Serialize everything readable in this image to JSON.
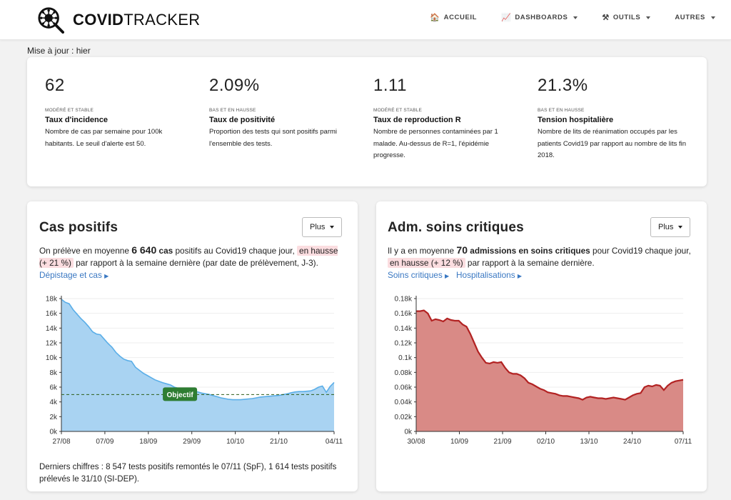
{
  "nav": {
    "brand_bold": "COVID",
    "brand_light": "TRACKER",
    "items": [
      {
        "icon": "🏠",
        "label": "ACCUEIL",
        "dropdown": false
      },
      {
        "icon": "📈",
        "label": "DASHBOARDS",
        "dropdown": true
      },
      {
        "icon": "⚒",
        "label": "OUTILS",
        "dropdown": true
      },
      {
        "icon": "",
        "label": "AUTRES",
        "dropdown": true
      }
    ]
  },
  "updated": "Mise à jour : hier",
  "kpis": [
    {
      "value": "62",
      "tag": "MODÉRÉ ET STABLE",
      "title": "Taux d'incidence",
      "desc": "Nombre de cas par semaine pour 100k habitants. Le seuil d'alerte est 50."
    },
    {
      "value": "2.09%",
      "tag": "BAS ET EN HAUSSE",
      "title": "Taux de positivité",
      "desc": "Proportion des tests qui sont positifs parmi l'ensemble des tests."
    },
    {
      "value": "1.11",
      "tag": "MODÉRÉ ET STABLE",
      "title": "Taux de reproduction R",
      "desc": "Nombre de personnes contaminées par 1 malade. Au-dessus de R=1, l'épidémie progresse."
    },
    {
      "value": "21.3%",
      "tag": "BAS ET EN HAUSSE",
      "title": "Tension hospitalière",
      "desc": "Nombre de lits de réanimation occupés par les patients Covid19 par rapport au nombre de lits fin 2018."
    }
  ],
  "cases": {
    "title": "Cas positifs",
    "plus": "Plus",
    "t1": "On prélève en moyenne ",
    "num": "6 640",
    "t2": " cas",
    "t3": " positifs au Covid19 chaque jour, ",
    "hl": "en hausse (+ 21 %)",
    "t4": " par rapport à la semaine dernière (par date de prélèvement, J-3).",
    "link1": "Dépistage et cas",
    "footer": "Derniers chiffres : 8 547 tests positifs remontés le 07/11 (SpF), 1 614 tests positifs prélevés le 31/10 (SI-DEP)."
  },
  "icu": {
    "title": "Adm. soins critiques",
    "plus": "Plus",
    "t1": "Il y a en moyenne ",
    "num": "70",
    "t2": " admissions en soins critiques",
    "t3": " pour Covid19 chaque jour, ",
    "hl": "en hausse (+ 12 %)",
    "t4": " par rapport à la semaine dernière.",
    "link1": "Soins critiques",
    "link2": "Hospitalisations"
  },
  "chart_data": [
    {
      "type": "area",
      "color": "#5aaee8",
      "fill": "#a9d3f2",
      "ylim": [
        0,
        18000
      ],
      "yticks": [
        0,
        2000,
        4000,
        6000,
        8000,
        10000,
        12000,
        14000,
        16000,
        18000
      ],
      "ytick_labels": [
        "0k",
        "2k",
        "4k",
        "6k",
        "8k",
        "10k",
        "12k",
        "14k",
        "16k",
        "18k"
      ],
      "x_days": 69,
      "xtick_days": [
        0,
        11,
        22,
        33,
        44,
        55,
        69
      ],
      "xtick_labels": [
        "27/08",
        "07/09",
        "18/09",
        "29/09",
        "10/10",
        "21/10",
        "04/11"
      ],
      "values": [
        17900,
        17500,
        17300,
        16500,
        15900,
        15300,
        14800,
        14200,
        13500,
        13200,
        13100,
        12500,
        11900,
        11400,
        10700,
        10200,
        9800,
        9600,
        9500,
        8700,
        8300,
        7900,
        7600,
        7300,
        7000,
        6800,
        6600,
        6450,
        6300,
        6000,
        5850,
        5700,
        5600,
        5500,
        5450,
        5350,
        5200,
        5100,
        5000,
        4850,
        4700,
        4550,
        4450,
        4350,
        4300,
        4300,
        4300,
        4350,
        4400,
        4450,
        4550,
        4650,
        4700,
        4750,
        4800,
        4850,
        4900,
        5000,
        5100,
        5250,
        5350,
        5400,
        5400,
        5450,
        5500,
        5700,
        6000,
        6150,
        5300,
        6100,
        6640
      ],
      "objective": {
        "value": 5000,
        "label": "Objectif",
        "color": "#2e7d32"
      }
    },
    {
      "type": "area",
      "color": "#b22222",
      "fill": "#d98a86",
      "ylim": [
        0,
        0.18
      ],
      "yticks": [
        0,
        0.02,
        0.04,
        0.06,
        0.08,
        0.1,
        0.12,
        0.14,
        0.16,
        0.18
      ],
      "ytick_labels": [
        "0k",
        "0.02k",
        "0.04k",
        "0.06k",
        "0.08k",
        "0.1k",
        "0.12k",
        "0.14k",
        "0.16k",
        "0.18k"
      ],
      "x_days": 68,
      "xtick_days": [
        0,
        11,
        22,
        33,
        44,
        55,
        68
      ],
      "xtick_labels": [
        "30/08",
        "10/09",
        "21/09",
        "02/10",
        "13/10",
        "24/10",
        "07/11"
      ],
      "values": [
        0.163,
        0.163,
        0.164,
        0.16,
        0.15,
        0.152,
        0.151,
        0.149,
        0.153,
        0.151,
        0.15,
        0.15,
        0.145,
        0.142,
        0.132,
        0.12,
        0.108,
        0.1,
        0.093,
        0.092,
        0.094,
        0.093,
        0.094,
        0.086,
        0.08,
        0.078,
        0.078,
        0.076,
        0.072,
        0.066,
        0.064,
        0.061,
        0.058,
        0.056,
        0.053,
        0.052,
        0.051,
        0.049,
        0.048,
        0.048,
        0.047,
        0.046,
        0.045,
        0.043,
        0.046,
        0.047,
        0.046,
        0.045,
        0.045,
        0.044,
        0.045,
        0.046,
        0.045,
        0.044,
        0.043,
        0.046,
        0.049,
        0.051,
        0.052,
        0.06,
        0.062,
        0.061,
        0.063,
        0.062,
        0.056,
        0.062,
        0.066,
        0.068,
        0.069,
        0.07
      ]
    }
  ]
}
